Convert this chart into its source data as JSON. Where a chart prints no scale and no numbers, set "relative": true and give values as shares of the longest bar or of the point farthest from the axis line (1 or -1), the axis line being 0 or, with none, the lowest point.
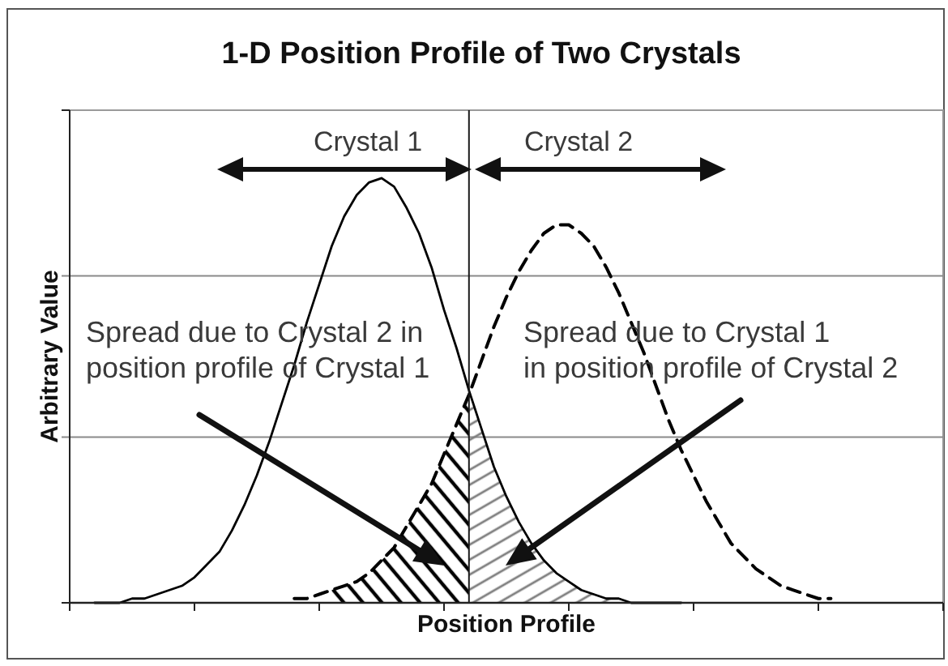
{
  "chart_data": {
    "type": "line",
    "title": "1-D Position Profile of Two Crystals",
    "xlabel": "Position Profile",
    "ylabel": "Arbitrary Value",
    "relative": true,
    "categories": [
      null,
      null,
      null,
      null,
      null,
      null,
      null,
      null,
      null,
      null,
      null,
      null,
      null,
      null,
      null,
      null,
      null,
      null,
      null,
      null,
      null,
      null,
      null,
      null,
      null,
      null,
      null,
      null,
      null,
      null,
      null,
      null,
      null,
      null,
      null,
      null,
      null,
      null,
      null,
      null,
      null,
      null,
      null,
      null,
      null,
      null,
      null,
      null,
      null,
      null,
      null,
      null,
      null,
      null,
      null,
      null,
      null,
      null,
      null,
      null,
      null,
      null,
      null,
      null,
      null,
      null,
      null,
      null,
      null,
      null,
      null
    ],
    "series": [
      {
        "color": "#000000",
        "line_style": "solid",
        "values": [
          null,
          null,
          0,
          0,
          0,
          0.01,
          0.01,
          0.02,
          0.03,
          0.04,
          0.06,
          0.09,
          0.12,
          0.17,
          0.23,
          0.3,
          0.38,
          0.47,
          0.56,
          0.66,
          0.75,
          0.84,
          0.91,
          0.96,
          0.99,
          1,
          0.98,
          0.93,
          0.87,
          0.79,
          0.69,
          0.6,
          0.5,
          0.41,
          0.32,
          0.25,
          0.19,
          0.14,
          0.1,
          0.07,
          0.05,
          0.03,
          0.02,
          0.01,
          0.01,
          0,
          0,
          0,
          0,
          0,
          null,
          null,
          null,
          null,
          null,
          null,
          null,
          null,
          null,
          null,
          null,
          null,
          null,
          null,
          null,
          null,
          null,
          null,
          null,
          null,
          null
        ]
      },
      {
        "color": "#000000",
        "line_style": "dashed",
        "values": [
          null,
          null,
          null,
          null,
          null,
          null,
          null,
          null,
          null,
          null,
          null,
          null,
          null,
          null,
          null,
          null,
          null,
          null,
          0.01,
          0.01,
          0.02,
          0.03,
          0.04,
          0.05,
          0.07,
          0.1,
          0.13,
          0.18,
          0.23,
          0.28,
          0.35,
          0.42,
          0.49,
          0.57,
          0.65,
          0.72,
          0.78,
          0.83,
          0.87,
          0.89,
          0.89,
          0.87,
          0.84,
          0.79,
          0.73,
          0.66,
          0.59,
          0.51,
          0.43,
          0.36,
          0.3,
          0.24,
          0.19,
          0.14,
          0.11,
          0.08,
          0.06,
          0.04,
          0.03,
          0.02,
          0.01,
          0.01,
          null,
          null,
          null,
          null,
          null,
          null,
          null,
          null,
          null
        ]
      },
      {
        "type": "area",
        "color": "#000000",
        "values": [
          null,
          null,
          null,
          null,
          null,
          null,
          null,
          null,
          null,
          null,
          null,
          null,
          null,
          null,
          null,
          null,
          null,
          null,
          null,
          null,
          null,
          0.03,
          0.04,
          0.05,
          0.07,
          0.1,
          0.13,
          0.18,
          0.23,
          0.28,
          0.35,
          0.42,
          0.49,
          null,
          null,
          null,
          null,
          null,
          null,
          null,
          null,
          null,
          null,
          null,
          null,
          null,
          null,
          null,
          null,
          null,
          null,
          null,
          null,
          null,
          null,
          null,
          null,
          null,
          null,
          null,
          null,
          null,
          null,
          null,
          null,
          null,
          null,
          null,
          null,
          null,
          null
        ]
      },
      {
        "type": "area",
        "color": "#808080",
        "values": [
          null,
          null,
          null,
          null,
          null,
          null,
          null,
          null,
          null,
          null,
          null,
          null,
          null,
          null,
          null,
          null,
          null,
          null,
          null,
          null,
          null,
          null,
          null,
          null,
          null,
          null,
          null,
          null,
          null,
          null,
          null,
          null,
          0.5,
          0.41,
          0.32,
          0.25,
          0.19,
          0.14,
          0.1,
          0.07,
          0.05,
          0.03,
          0.02,
          0.01,
          0.01,
          null,
          null,
          null,
          null,
          null,
          null,
          null,
          null,
          null,
          null,
          null,
          null,
          null,
          null,
          null,
          null,
          null,
          null,
          null,
          null,
          null,
          null,
          null,
          null,
          null,
          null
        ]
      }
    ],
    "ref_lines": [
      {
        "axis": "y",
        "value": 0.39,
        "color": "#8a8a8a"
      },
      {
        "axis": "y",
        "value": 0.77,
        "color": "#8a8a8a"
      }
    ],
    "annotations": [
      "Crystal 1",
      "Crystal 2",
      "Spread due to Crystal 2 in\nposition profile of Crystal 1",
      "Spread due to Crystal 1\nin position profile of Crystal 2"
    ]
  }
}
